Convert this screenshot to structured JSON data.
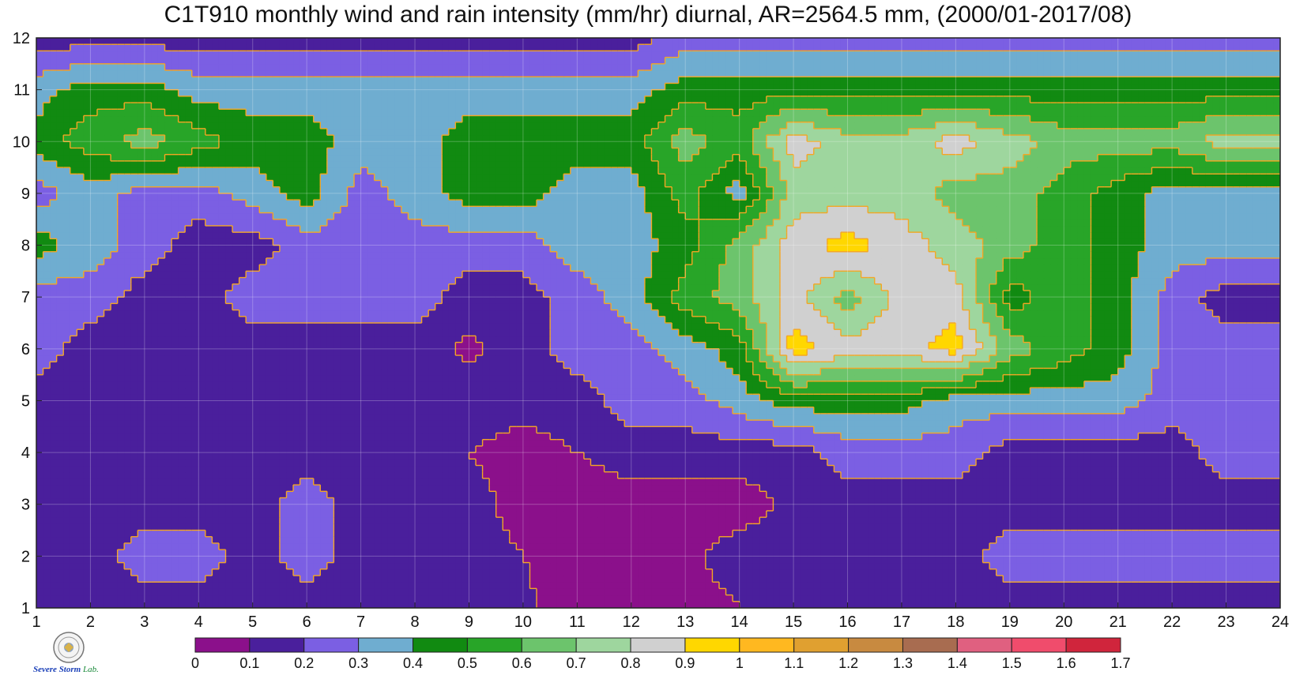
{
  "chart_data": {
    "type": "heatmap",
    "title": "C1T910 monthly wind and rain intensity (mm/hr) diurnal, AR=2564.5 mm, (2000/01-2017/08)",
    "xlabel": "",
    "ylabel": "",
    "x": [
      1,
      2,
      3,
      4,
      5,
      6,
      7,
      8,
      9,
      10,
      11,
      12,
      13,
      14,
      15,
      16,
      17,
      18,
      19,
      20,
      21,
      22,
      23,
      24
    ],
    "y": [
      1,
      2,
      3,
      4,
      5,
      6,
      7,
      8,
      9,
      10,
      11,
      12
    ],
    "xlim": [
      1,
      24
    ],
    "ylim": [
      1,
      12
    ],
    "x_tick_labels": [
      "1",
      "2",
      "3",
      "4",
      "5",
      "6",
      "7",
      "8",
      "9",
      "10",
      "11",
      "12",
      "13",
      "14",
      "15",
      "16",
      "17",
      "18",
      "19",
      "20",
      "21",
      "22",
      "23",
      "24"
    ],
    "y_tick_labels": [
      "1",
      "2",
      "3",
      "4",
      "5",
      "6",
      "7",
      "8",
      "9",
      "10",
      "11",
      "12"
    ],
    "z": [
      [
        0.15,
        0.15,
        0.15,
        0.15,
        0.15,
        0.15,
        0.15,
        0.15,
        0.15,
        0.12,
        0.05,
        0.05,
        0.05,
        0.1,
        0.15,
        0.15,
        0.15,
        0.15,
        0.15,
        0.15,
        0.15,
        0.15,
        0.15,
        0.15
      ],
      [
        0.15,
        0.15,
        0.25,
        0.25,
        0.15,
        0.25,
        0.15,
        0.15,
        0.15,
        0.1,
        0.05,
        0.05,
        0.08,
        0.15,
        0.15,
        0.15,
        0.15,
        0.15,
        0.25,
        0.25,
        0.25,
        0.25,
        0.25,
        0.25
      ],
      [
        0.15,
        0.15,
        0.15,
        0.15,
        0.15,
        0.25,
        0.15,
        0.15,
        0.15,
        0.05,
        0.05,
        0.05,
        0.05,
        0.05,
        0.12,
        0.15,
        0.15,
        0.15,
        0.15,
        0.15,
        0.15,
        0.15,
        0.15,
        0.15
      ],
      [
        0.15,
        0.15,
        0.15,
        0.15,
        0.15,
        0.15,
        0.15,
        0.15,
        0.1,
        0.05,
        0.1,
        0.15,
        0.15,
        0.15,
        0.15,
        0.25,
        0.25,
        0.25,
        0.15,
        0.15,
        0.15,
        0.15,
        0.25,
        0.25
      ],
      [
        0.15,
        0.15,
        0.15,
        0.15,
        0.15,
        0.15,
        0.15,
        0.15,
        0.15,
        0.15,
        0.15,
        0.25,
        0.25,
        0.35,
        0.45,
        0.45,
        0.45,
        0.35,
        0.35,
        0.35,
        0.35,
        0.25,
        0.25,
        0.25
      ],
      [
        0.25,
        0.15,
        0.15,
        0.15,
        0.15,
        0.15,
        0.15,
        0.15,
        0.08,
        0.15,
        0.25,
        0.25,
        0.35,
        0.45,
        0.95,
        0.85,
        0.85,
        0.95,
        0.65,
        0.55,
        0.45,
        0.25,
        0.25,
        0.25
      ],
      [
        0.25,
        0.25,
        0.15,
        0.15,
        0.25,
        0.25,
        0.25,
        0.25,
        0.15,
        0.15,
        0.25,
        0.35,
        0.55,
        0.65,
        0.85,
        0.65,
        0.85,
        0.85,
        0.45,
        0.55,
        0.45,
        0.25,
        0.15,
        0.15
      ],
      [
        0.45,
        0.35,
        0.25,
        0.15,
        0.15,
        0.25,
        0.25,
        0.25,
        0.25,
        0.25,
        0.35,
        0.35,
        0.45,
        0.65,
        0.85,
        0.95,
        0.85,
        0.75,
        0.65,
        0.55,
        0.45,
        0.35,
        0.35,
        0.35
      ],
      [
        0.25,
        0.35,
        0.25,
        0.25,
        0.35,
        0.45,
        0.25,
        0.35,
        0.45,
        0.45,
        0.35,
        0.35,
        0.55,
        0.35,
        0.75,
        0.75,
        0.75,
        0.65,
        0.65,
        0.55,
        0.45,
        0.35,
        0.35,
        0.35
      ],
      [
        0.45,
        0.55,
        0.65,
        0.55,
        0.45,
        0.45,
        0.35,
        0.35,
        0.45,
        0.45,
        0.45,
        0.45,
        0.65,
        0.55,
        0.85,
        0.75,
        0.75,
        0.85,
        0.75,
        0.65,
        0.65,
        0.65,
        0.75,
        0.75
      ],
      [
        0.35,
        0.45,
        0.45,
        0.35,
        0.35,
        0.35,
        0.35,
        0.35,
        0.35,
        0.35,
        0.35,
        0.35,
        0.45,
        0.45,
        0.45,
        0.45,
        0.45,
        0.45,
        0.45,
        0.45,
        0.45,
        0.45,
        0.45,
        0.45
      ],
      [
        0.15,
        0.15,
        0.15,
        0.15,
        0.15,
        0.15,
        0.15,
        0.15,
        0.15,
        0.15,
        0.15,
        0.15,
        0.25,
        0.25,
        0.25,
        0.25,
        0.25,
        0.25,
        0.25,
        0.25,
        0.25,
        0.25,
        0.25,
        0.25
      ]
    ],
    "colorbar": {
      "levels": [
        0,
        0.1,
        0.2,
        0.3,
        0.4,
        0.5,
        0.6,
        0.7,
        0.8,
        0.9,
        1,
        1.1,
        1.2,
        1.3,
        1.4,
        1.5,
        1.6,
        1.7
      ],
      "tick_labels": [
        "0",
        "0.1",
        "0.2",
        "0.3",
        "0.4",
        "0.5",
        "0.6",
        "0.7",
        "0.8",
        "0.9",
        "1",
        "1.1",
        "1.2",
        "1.3",
        "1.4",
        "1.5",
        "1.6",
        "1.7"
      ],
      "colors": [
        "#8b108b",
        "#4a1f9c",
        "#7b5fe3",
        "#6fadd0",
        "#118a11",
        "#28a528",
        "#6cc46c",
        "#9ed69e",
        "#d0d0d0",
        "#ffd700",
        "#ffb820",
        "#e0a030",
        "#c88a40",
        "#a86c50",
        "#e06080",
        "#f04c6c",
        "#d0253c"
      ]
    },
    "contour_line_color": "#f5a623",
    "grid": true
  },
  "logo": {
    "line1": "Severe",
    "line2": "Storm",
    "line3": "Lab."
  }
}
